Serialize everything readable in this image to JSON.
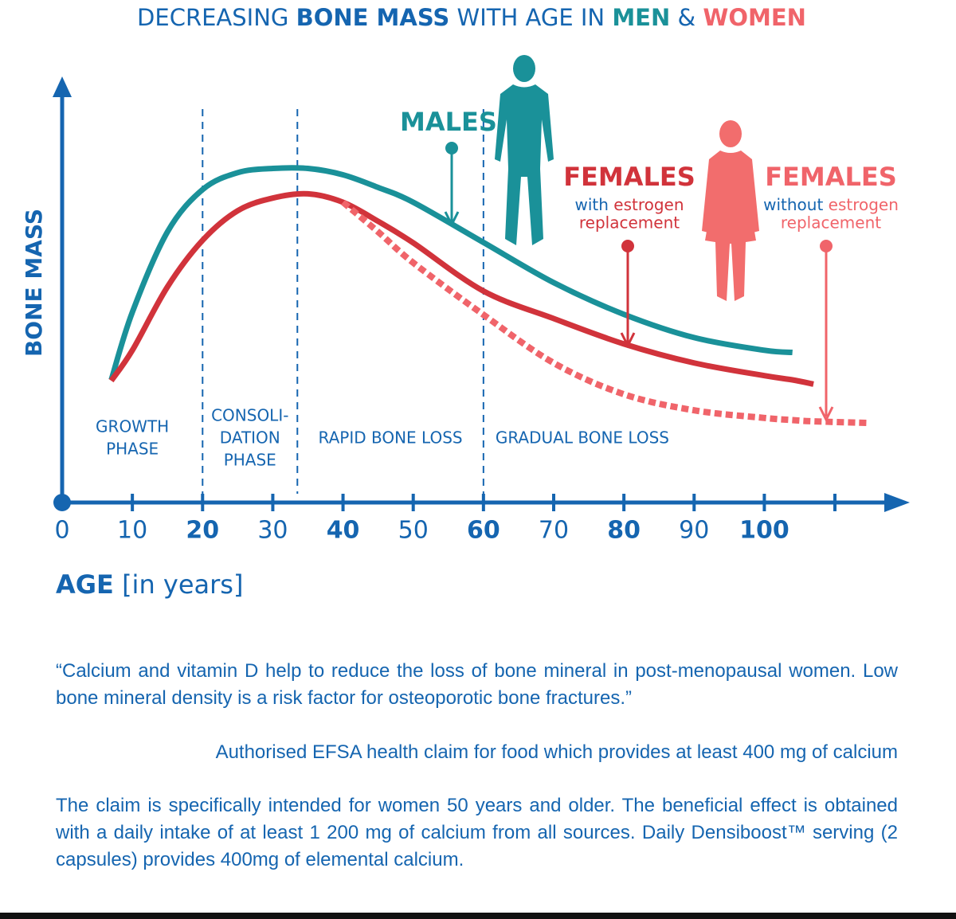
{
  "chart_data": {
    "type": "line",
    "title": [
      "DECREASING ",
      "BONE MASS",
      " WITH AGE IN ",
      "MEN",
      " & ",
      "WOMEN"
    ],
    "y_label": "BONE MASS",
    "x_label": [
      "AGE",
      "[in years]"
    ],
    "x": [
      7,
      10,
      15,
      20,
      25,
      30,
      35,
      40,
      45,
      50,
      60,
      70,
      80,
      90,
      100,
      104,
      107,
      115
    ],
    "series": [
      {
        "name": "MALES",
        "color": "#1a9199",
        "dashed": false,
        "values": [
          29,
          45,
          64,
          74,
          78,
          79,
          79,
          77.5,
          74.5,
          71,
          61.5,
          52,
          44.5,
          39,
          36,
          35.5,
          null,
          null
        ]
      },
      {
        "name": "FEMALES",
        "note": [
          "with",
          "estrogen",
          "replacement"
        ],
        "color": "#d1333b",
        "dashed": false,
        "values": [
          28.8,
          36,
          51,
          62,
          69,
          72,
          73,
          71,
          66.5,
          61.4,
          50,
          43.5,
          37.5,
          33,
          30,
          29,
          28,
          null
        ]
      },
      {
        "name": "FEMALES",
        "note": [
          "without",
          "estrogen",
          "replacement"
        ],
        "color": "#f0646a",
        "dashed": true,
        "values": [
          null,
          null,
          null,
          null,
          null,
          null,
          null,
          71,
          64,
          56.7,
          44.4,
          33,
          25.6,
          21.8,
          20,
          19.5,
          19.2,
          18.8
        ]
      }
    ],
    "phase_dividers": [
      20,
      33.5,
      60
    ],
    "phases": [
      [
        "GROWTH",
        "PHASE"
      ],
      [
        "CONSOLI-",
        "DATION",
        "PHASE"
      ],
      [
        "RAPID BONE LOSS"
      ],
      [
        "GRADUAL BONE LOSS"
      ]
    ],
    "xlim": [
      0,
      120
    ],
    "ylim": [
      0,
      100
    ],
    "xticks": [
      0,
      10,
      20,
      30,
      40,
      50,
      60,
      70,
      80,
      90,
      100
    ]
  },
  "notes": {
    "quote": "“Calcium and vitamin D help to reduce the loss of bone mineral in post-menopausal women. Low bone mineral density is a risk factor for osteoporotic bone fractures.”",
    "attribution": "Authorised EFSA health claim for food which provides at least 400 mg of calcium",
    "disclaimer": "The claim is specifically intended for women 50 years and older. The beneficial effect is obtained with a daily intake of at least 1 200 mg of calcium from all sources. Daily Densiboost™ serving (2 capsules) provides 400mg of elemental calcium."
  }
}
